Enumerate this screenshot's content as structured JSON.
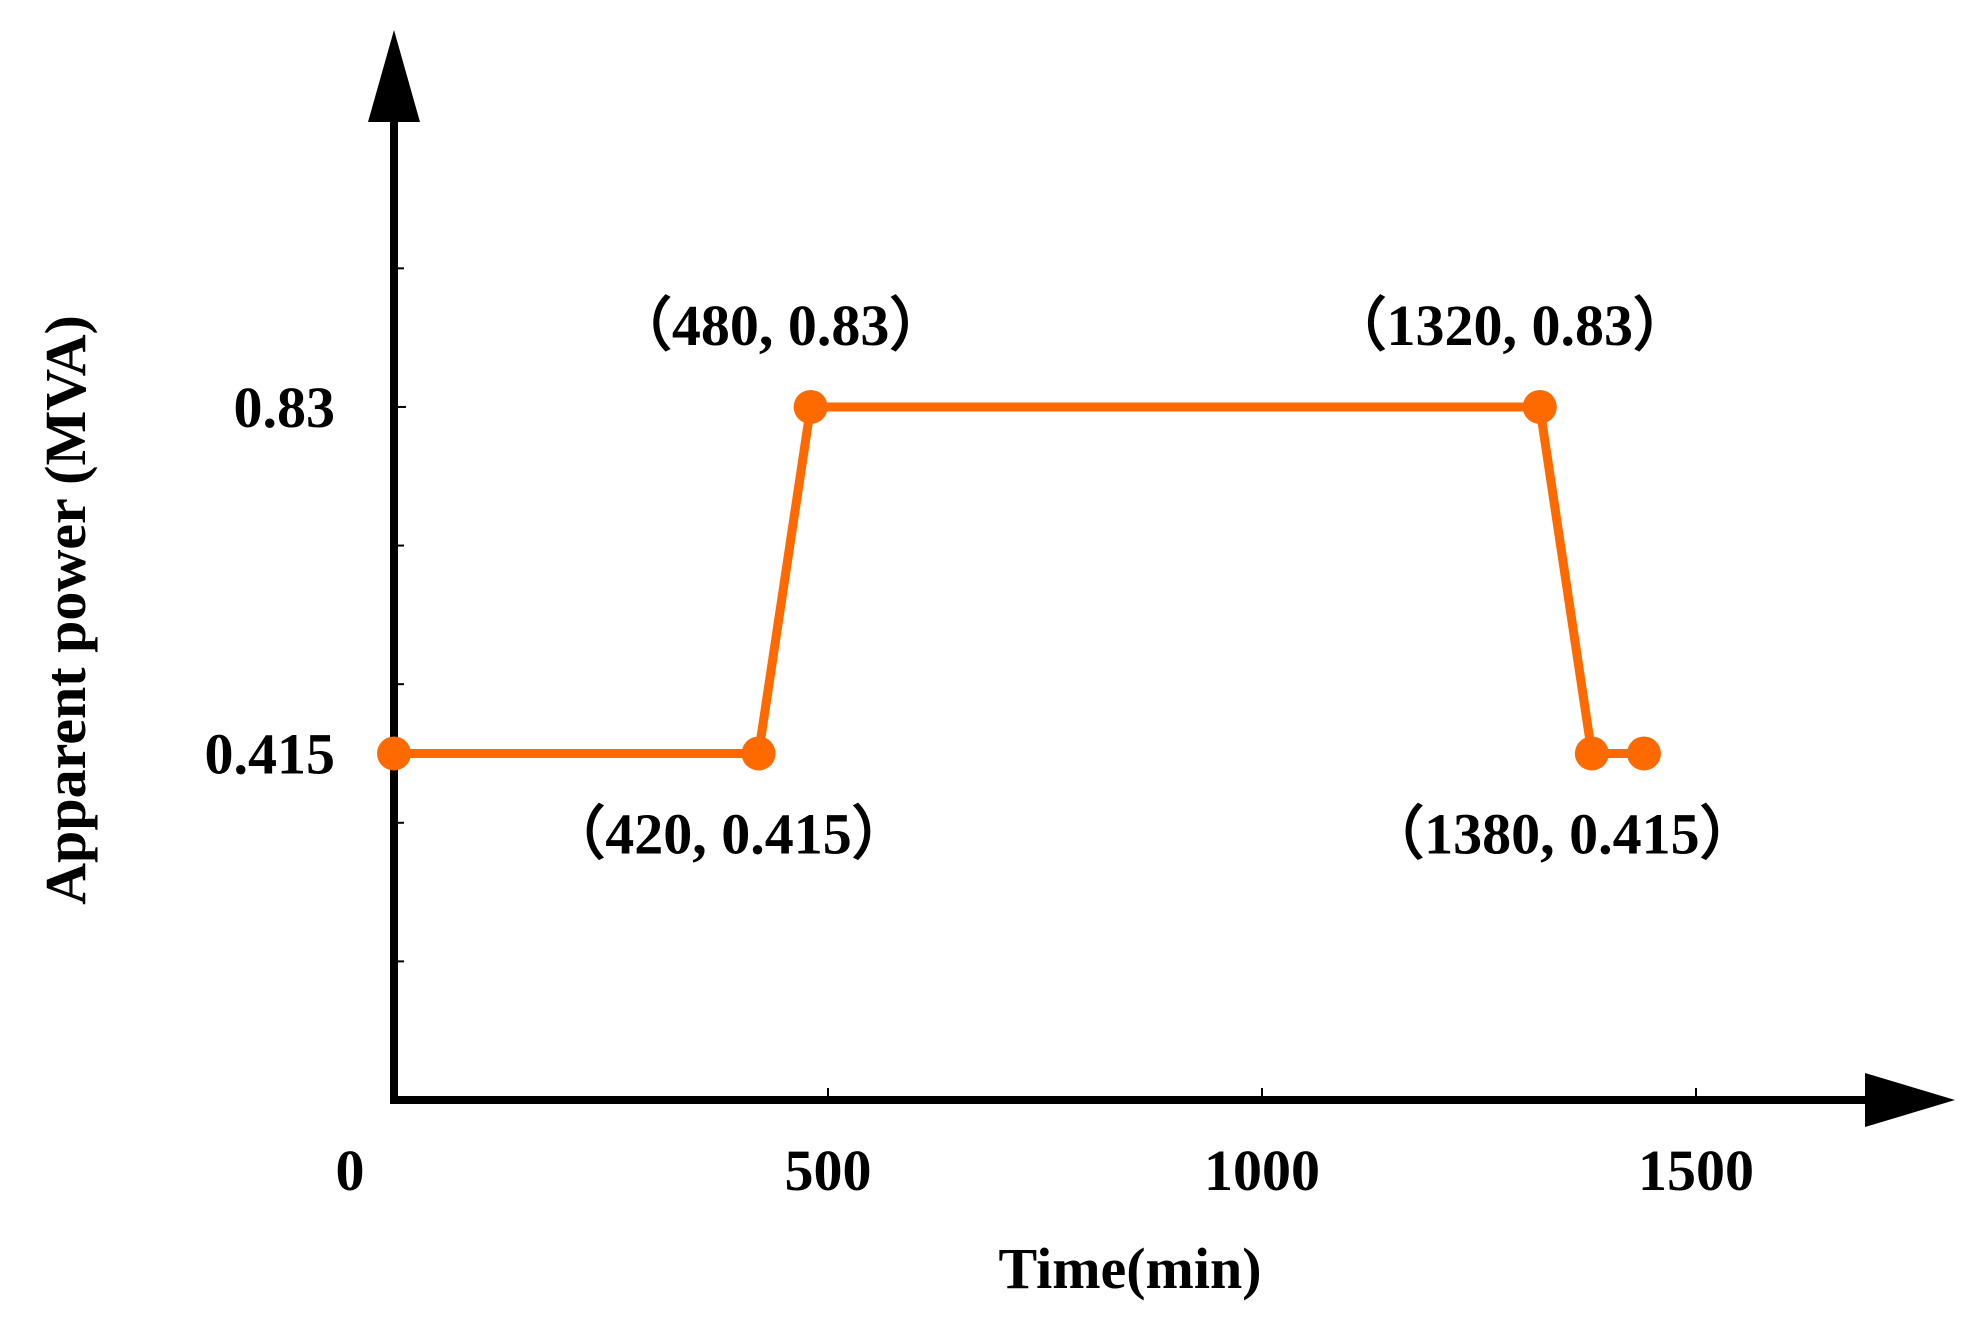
{
  "chart_data": {
    "type": "line",
    "title": "",
    "xlabel": "Time(min)",
    "ylabel": "Apparent power (MVA)",
    "xlim": [
      0,
      1750
    ],
    "ylim": [
      0,
      1.12
    ],
    "x_ticks": [
      {
        "value": 0,
        "label": "0"
      },
      {
        "value": 500,
        "label": "500"
      },
      {
        "value": 1000,
        "label": "1000"
      },
      {
        "value": 1500,
        "label": "1500"
      }
    ],
    "y_ticks": [
      {
        "value": 0.415,
        "label": "0.415"
      },
      {
        "value": 0.83,
        "label": "0.83"
      }
    ],
    "grid": false,
    "legend": "none",
    "series": [
      {
        "color": "#ff6a00",
        "points": [
          {
            "x": 0,
            "y": 0.415
          },
          {
            "x": 420,
            "y": 0.415
          },
          {
            "x": 480,
            "y": 0.83
          },
          {
            "x": 1320,
            "y": 0.83
          },
          {
            "x": 1380,
            "y": 0.415
          },
          {
            "x": 1440,
            "y": 0.415
          }
        ]
      }
    ],
    "annotations": [
      {
        "text": "（480, 0.83）",
        "x": 480,
        "y": 0.83,
        "position": "above"
      },
      {
        "text": "（1320, 0.83）",
        "x": 1320,
        "y": 0.83,
        "position": "above"
      },
      {
        "text": "（420, 0.415）",
        "x": 420,
        "y": 0.415,
        "position": "below"
      },
      {
        "text": "（1380, 0.415）",
        "x": 1380,
        "y": 0.415,
        "position": "below"
      }
    ]
  }
}
